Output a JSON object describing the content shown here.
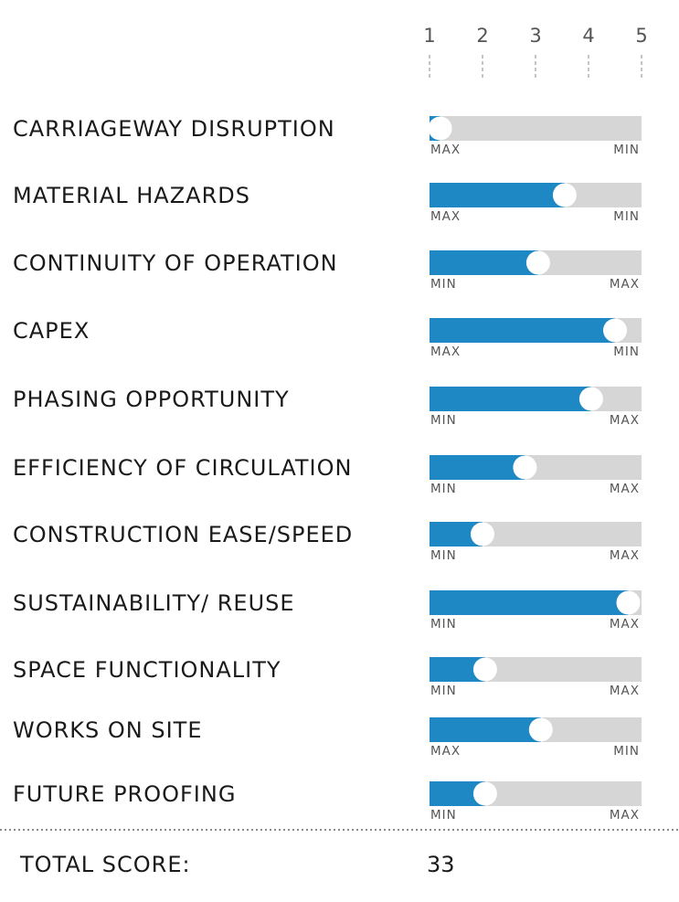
{
  "chart_data": {
    "type": "bar",
    "orientation": "horizontal",
    "xlim": [
      1,
      5
    ],
    "scale_ticks": [
      "1",
      "2",
      "3",
      "4",
      "5"
    ],
    "grid": false,
    "colors": {
      "fill": "#1e88c4",
      "track": "#d6d6d6",
      "knob": "#ffffff"
    },
    "criteria": [
      {
        "label": "CARRIAGEWAY DISRUPTION",
        "value": 1.2,
        "left_end": "MAX",
        "right_end": "MIN"
      },
      {
        "label": "MATERIAL HAZARDS",
        "value": 3.55,
        "left_end": "MAX",
        "right_end": "MIN"
      },
      {
        "label": "CONTINUITY OF OPERATION",
        "value": 3.05,
        "left_end": "MIN",
        "right_end": "MAX"
      },
      {
        "label": "CAPEX",
        "value": 4.5,
        "left_end": "MAX",
        "right_end": "MIN"
      },
      {
        "label": "PHASING OPPORTUNITY",
        "value": 4.05,
        "left_end": "MIN",
        "right_end": "MAX"
      },
      {
        "label": "EFFICIENCY OF CIRCULATION",
        "value": 2.8,
        "left_end": "MIN",
        "right_end": "MAX"
      },
      {
        "label": "CONSTRUCTION EASE/SPEED",
        "value": 2.0,
        "left_end": "MIN",
        "right_end": "MAX"
      },
      {
        "label": "SUSTAINABILITY/ REUSE",
        "value": 4.75,
        "left_end": "MIN",
        "right_end": "MAX"
      },
      {
        "label": "SPACE FUNCTIONALITY",
        "value": 2.05,
        "left_end": "MIN",
        "right_end": "MAX"
      },
      {
        "label": "WORKS ON SITE",
        "value": 3.1,
        "left_end": "MAX",
        "right_end": "MIN"
      },
      {
        "label": "FUTURE PROOFING",
        "value": 2.05,
        "left_end": "MIN",
        "right_end": "MAX"
      }
    ]
  },
  "total": {
    "label": "TOTAL SCORE:",
    "value": "33"
  }
}
